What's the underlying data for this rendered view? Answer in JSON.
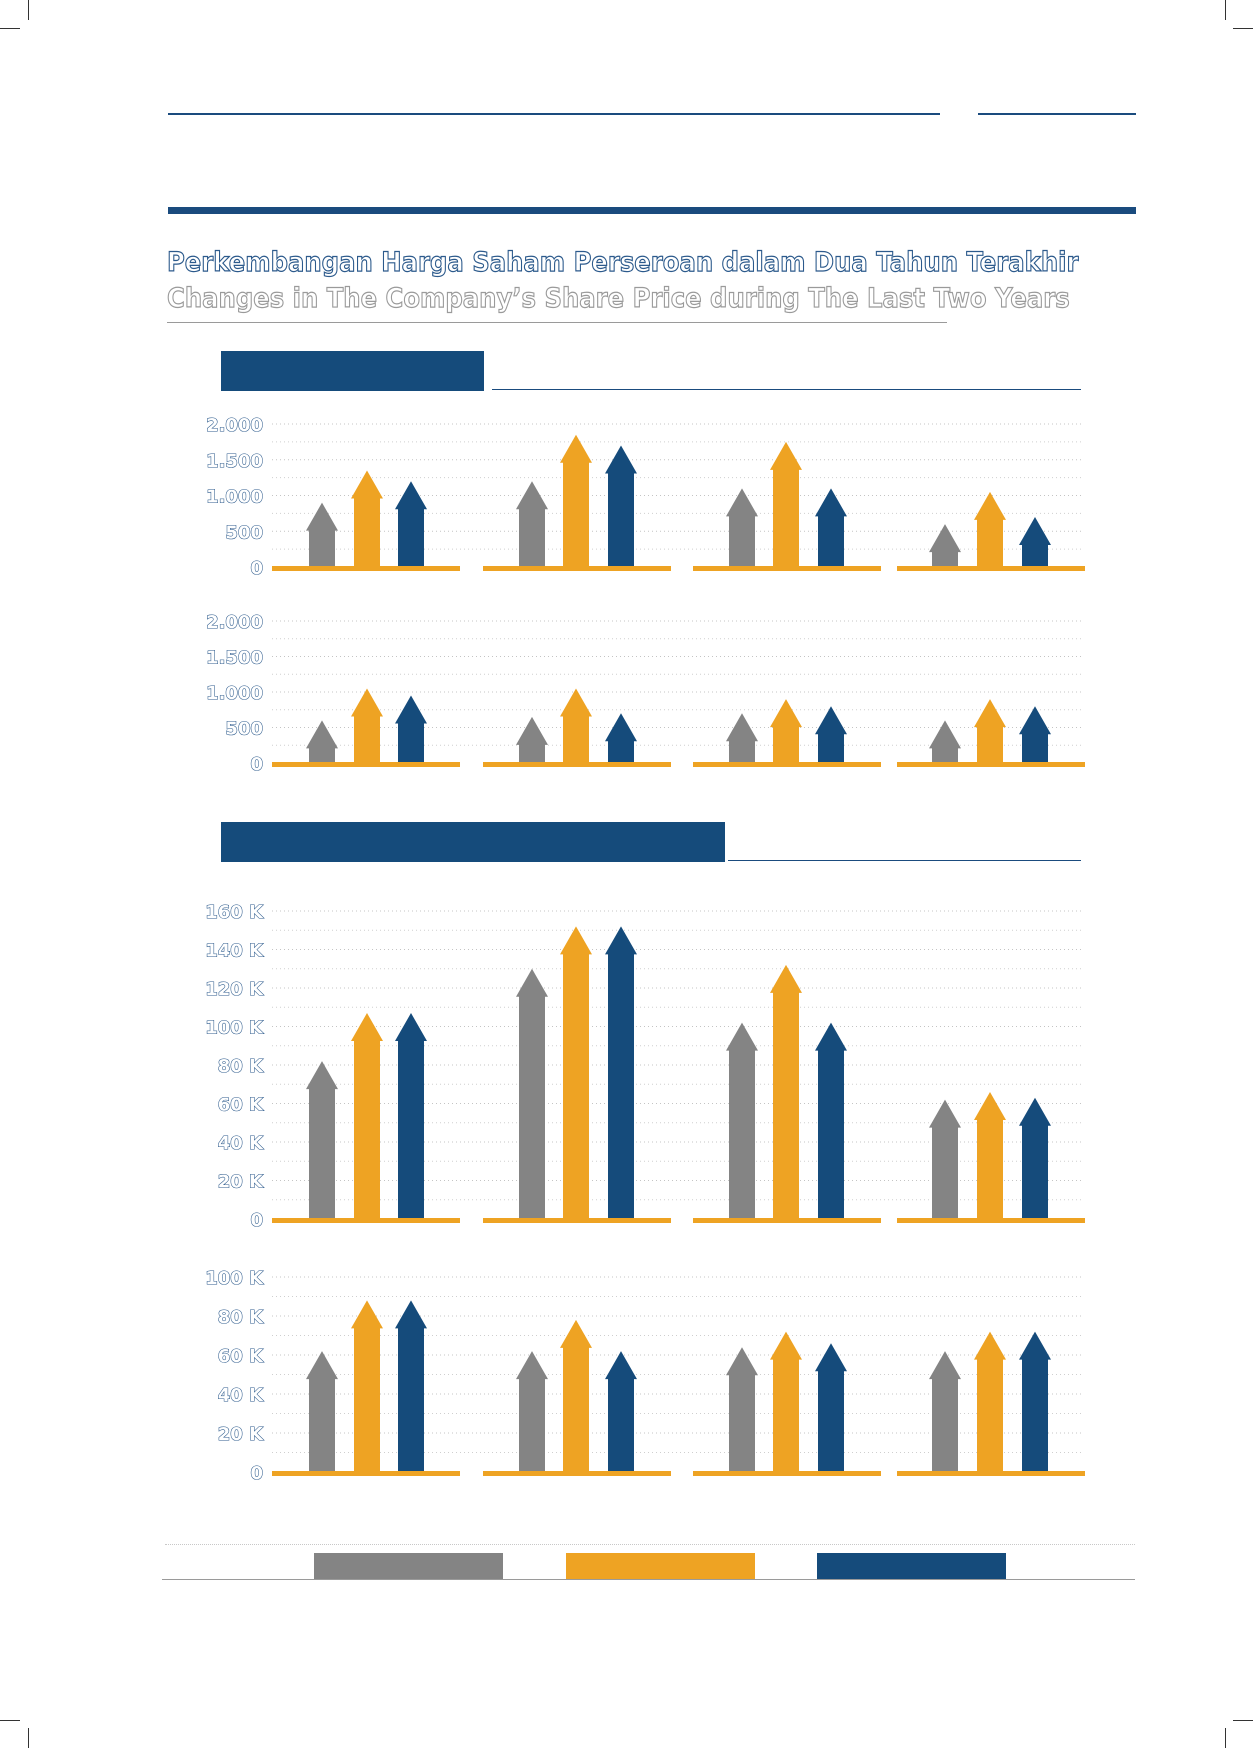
{
  "header": {
    "title_id": "Perkembangan Harga Saham Perseroan dalam Dua Tahun Terakhir",
    "title_en": "Changes in The Company’s Share Price during The Last Two Years"
  },
  "colors": {
    "gray": "#848484",
    "orange": "#eea323",
    "blue": "#154b7b",
    "axis": "#eea323",
    "tick_text": "#2c5a8c"
  },
  "legend": [
    {
      "color": "#848484"
    },
    {
      "color": "#eea323"
    },
    {
      "color": "#154b7b"
    }
  ],
  "chart_data": [
    {
      "type": "bar",
      "ylim": [
        0,
        2000
      ],
      "yticks": [
        0,
        500,
        1000,
        1500,
        2000
      ],
      "yticklabels": [
        "0",
        "500",
        "1.000",
        "1.500",
        "2.000"
      ],
      "grid": true,
      "groups": 4,
      "series": [
        {
          "color": "#848484",
          "values": [
            900,
            1200,
            1100,
            600
          ]
        },
        {
          "color": "#eea323",
          "values": [
            1350,
            1850,
            1750,
            1050
          ]
        },
        {
          "color": "#154b7b",
          "values": [
            1200,
            1700,
            1100,
            700
          ]
        }
      ]
    },
    {
      "type": "bar",
      "ylim": [
        0,
        2000
      ],
      "yticks": [
        0,
        500,
        1000,
        1500,
        2000
      ],
      "yticklabels": [
        "0",
        "500",
        "1.000",
        "1.500",
        "2.000"
      ],
      "grid": true,
      "groups": 4,
      "series": [
        {
          "color": "#848484",
          "values": [
            600,
            650,
            700,
            600
          ]
        },
        {
          "color": "#eea323",
          "values": [
            1050,
            1050,
            900,
            900
          ]
        },
        {
          "color": "#154b7b",
          "values": [
            950,
            700,
            800,
            800
          ]
        }
      ]
    },
    {
      "type": "bar",
      "ylim": [
        0,
        160000
      ],
      "yticks": [
        0,
        20000,
        40000,
        60000,
        80000,
        100000,
        120000,
        140000,
        160000
      ],
      "yticklabels": [
        "0",
        "20 K",
        "40 K",
        "60 K",
        "80 K",
        "100 K",
        "120 K",
        "140 K",
        "160 K"
      ],
      "grid": true,
      "groups": 4,
      "series": [
        {
          "color": "#848484",
          "values": [
            82000,
            130000,
            102000,
            62000
          ]
        },
        {
          "color": "#eea323",
          "values": [
            107000,
            152000,
            132000,
            66000
          ]
        },
        {
          "color": "#154b7b",
          "values": [
            107000,
            152000,
            102000,
            63000
          ]
        }
      ]
    },
    {
      "type": "bar",
      "ylim": [
        0,
        100000
      ],
      "yticks": [
        0,
        20000,
        40000,
        60000,
        80000,
        100000
      ],
      "yticklabels": [
        "0",
        "20 K",
        "40 K",
        "60 K",
        "80 K",
        "100 K"
      ],
      "grid": true,
      "groups": 4,
      "series": [
        {
          "color": "#848484",
          "values": [
            62000,
            62000,
            64000,
            62000
          ]
        },
        {
          "color": "#eea323",
          "values": [
            88000,
            78000,
            72000,
            72000
          ]
        },
        {
          "color": "#154b7b",
          "values": [
            88000,
            62000,
            66000,
            72000
          ]
        }
      ]
    }
  ]
}
